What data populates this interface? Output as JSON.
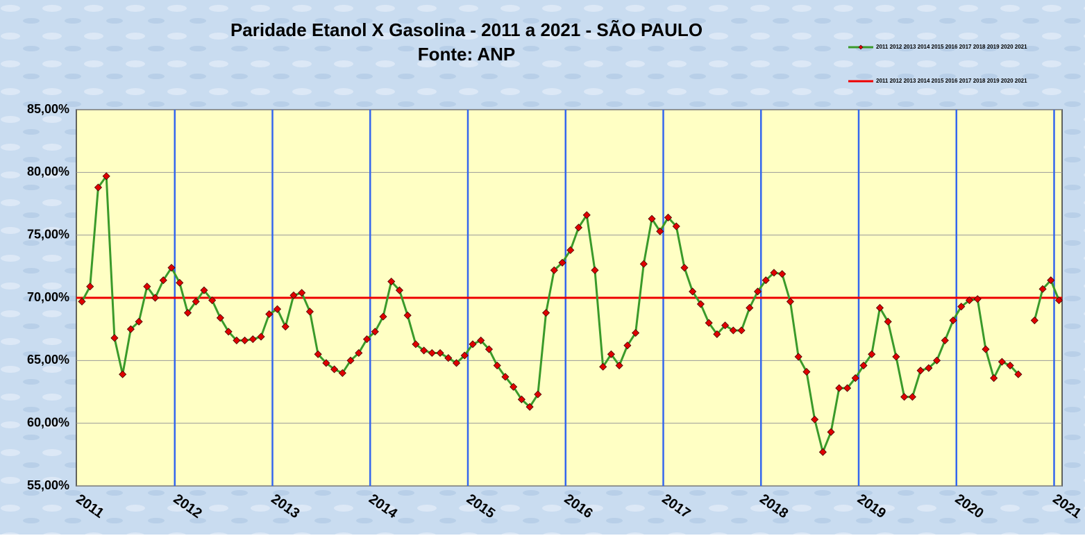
{
  "chart_data": {
    "type": "line",
    "title": "Paridade Etanol X Gasolina  - 2011 a 2021 - SÃO PAULO",
    "subtitle": "Fonte: ANP",
    "categories": [
      "2011",
      null,
      null,
      null,
      null,
      null,
      null,
      null,
      null,
      null,
      null,
      null,
      "2012",
      null,
      null,
      null,
      null,
      null,
      null,
      null,
      null,
      null,
      null,
      null,
      "2013",
      null,
      null,
      null,
      null,
      null,
      null,
      null,
      null,
      null,
      null,
      null,
      "2014",
      null,
      null,
      null,
      null,
      null,
      null,
      null,
      null,
      null,
      null,
      null,
      "2015",
      null,
      null,
      null,
      null,
      null,
      null,
      null,
      null,
      null,
      null,
      null,
      "2016",
      null,
      null,
      null,
      null,
      null,
      null,
      null,
      null,
      null,
      null,
      null,
      "2017",
      null,
      null,
      null,
      null,
      null,
      null,
      null,
      null,
      null,
      null,
      null,
      "2018",
      null,
      null,
      null,
      null,
      null,
      null,
      null,
      null,
      null,
      null,
      null,
      "2019",
      null,
      null,
      null,
      null,
      null,
      null,
      null,
      null,
      null,
      null,
      null,
      "2020",
      null,
      null,
      null,
      null,
      null,
      null,
      null,
      null,
      null,
      null,
      null,
      "2021"
    ],
    "series": [
      {
        "name": "2011 2012 2013 2014 2015 2016 2017 2018 2019 2020 2021",
        "color": "#3a9a2a",
        "marker_color": "#e00000",
        "values": [
          69.7,
          70.9,
          78.8,
          79.7,
          66.8,
          63.9,
          67.5,
          68.1,
          70.9,
          70.0,
          71.4,
          72.4,
          71.2,
          68.8,
          69.7,
          70.6,
          69.8,
          68.4,
          67.3,
          66.6,
          66.6,
          66.7,
          66.9,
          68.7,
          69.1,
          67.7,
          70.2,
          70.4,
          68.9,
          65.5,
          64.8,
          64.3,
          64.0,
          65.0,
          65.6,
          66.7,
          67.3,
          68.5,
          71.3,
          70.6,
          68.6,
          66.3,
          65.8,
          65.6,
          65.6,
          65.2,
          64.8,
          65.4,
          66.3,
          66.6,
          65.9,
          64.6,
          63.7,
          62.9,
          61.9,
          61.3,
          62.3,
          68.8,
          72.2,
          72.8,
          73.8,
          75.6,
          76.6,
          72.2,
          64.5,
          65.5,
          64.6,
          66.2,
          67.2,
          72.7,
          76.3,
          75.3,
          76.4,
          75.7,
          72.4,
          70.5,
          69.5,
          68.0,
          67.1,
          67.8,
          67.4,
          67.4,
          69.2,
          70.5,
          71.4,
          72.0,
          71.9,
          69.7,
          65.3,
          64.1,
          60.3,
          57.7,
          59.3,
          62.8,
          62.8,
          63.6,
          64.6,
          65.5,
          69.2,
          68.1,
          65.3,
          62.1,
          62.1,
          64.2,
          64.4,
          65.0,
          66.6,
          68.2,
          69.3,
          69.8,
          69.9,
          65.9,
          63.6,
          64.9,
          64.6,
          63.9,
          null,
          68.2,
          70.7,
          71.4,
          69.8
        ]
      }
    ],
    "reference_line": {
      "name": "2011 2012 2013 2014 2015 2016 2017 2018 2019 2020 2021",
      "value": 70,
      "color": "#ee0000"
    },
    "ylim": [
      55,
      85
    ],
    "yticks": [
      {
        "value": 55,
        "label": "55,00%"
      },
      {
        "value": 60,
        "label": "60,00%"
      },
      {
        "value": 65,
        "label": "65,00%"
      },
      {
        "value": 70,
        "label": "70,00%"
      },
      {
        "value": 75,
        "label": "75,00%"
      },
      {
        "value": 80,
        "label": "80,00%"
      },
      {
        "value": 85,
        "label": "85,00%"
      }
    ],
    "grid": true
  }
}
